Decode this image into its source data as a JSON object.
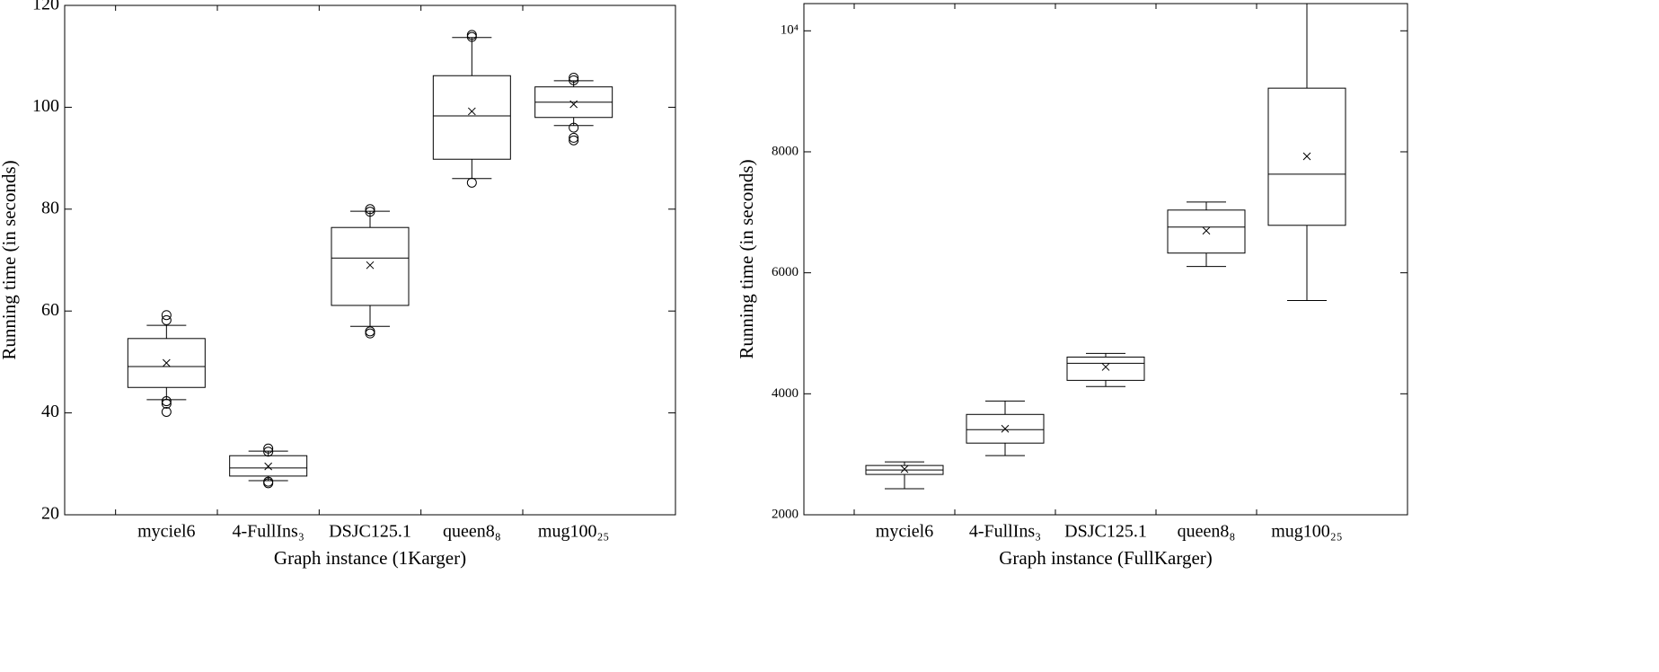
{
  "chart_data": [
    {
      "type": "box",
      "xlabel": "Graph instance (1Karger)",
      "ylabel": "Running time (in seconds)",
      "categories": [
        "myciel6",
        "4-FullIns₃",
        "DSJC125.1",
        "queen8₈",
        "mug100₂₅"
      ],
      "boxes": [
        {
          "whislo": 42.6,
          "q1": 45.0,
          "med": 49.1,
          "q3": 54.6,
          "whishi": 57.2,
          "mean": 49.8,
          "fliers": [
            59.2,
            58.2,
            42.3,
            41.8,
            40.2
          ]
        },
        {
          "whislo": 26.7,
          "q1": 27.6,
          "med": 29.2,
          "q3": 31.6,
          "whishi": 32.5,
          "mean": 29.5,
          "fliers": [
            33.0,
            32.4,
            26.5,
            26.2
          ]
        },
        {
          "whislo": 57.0,
          "q1": 61.1,
          "med": 70.4,
          "q3": 76.4,
          "whishi": 79.6,
          "mean": 69.0,
          "fliers": [
            80.0,
            79.5,
            56.0,
            55.6
          ]
        },
        {
          "whislo": 86.0,
          "q1": 89.8,
          "med": 98.3,
          "q3": 106.2,
          "whishi": 113.7,
          "mean": 99.2,
          "fliers": [
            114.2,
            113.8,
            85.2
          ]
        },
        {
          "whislo": 96.4,
          "q1": 98.0,
          "med": 101.0,
          "q3": 104.0,
          "whishi": 105.2,
          "mean": 100.6,
          "fliers": [
            105.8,
            105.3,
            96.0,
            94.0,
            93.5
          ]
        }
      ],
      "ylim": [
        20,
        120
      ],
      "yticks": [
        20,
        40,
        60,
        80,
        100,
        120
      ]
    },
    {
      "type": "box",
      "xlabel": "Graph instance (FullKarger)",
      "ylabel": "Running time (in seconds)",
      "categories": [
        "myciel6",
        "4-FullIns₃",
        "DSJC125.1",
        "queen8₈",
        "mug100₂₅"
      ],
      "boxes": [
        {
          "whislo": 2430,
          "q1": 2667,
          "med": 2741,
          "q3": 2815,
          "whishi": 2874,
          "mean": 2756
        },
        {
          "whislo": 2978,
          "q1": 3185,
          "med": 3407,
          "q3": 3659,
          "whishi": 3881,
          "mean": 3422
        },
        {
          "whislo": 4119,
          "q1": 4222,
          "med": 4504,
          "q3": 4607,
          "whishi": 4667,
          "mean": 4444
        },
        {
          "whislo": 6104,
          "q1": 6326,
          "med": 6756,
          "q3": 7037,
          "whishi": 7170,
          "mean": 6696
        },
        {
          "whislo": 5541,
          "q1": 6785,
          "med": 7630,
          "q3": 9052,
          "whishi": 10600,
          "mean": 7926
        }
      ],
      "ylim": [
        2000,
        10450
      ],
      "yticks": [
        2000,
        4000,
        6000,
        8000,
        {
          "value": 10000,
          "label": "10⁴"
        }
      ]
    }
  ]
}
